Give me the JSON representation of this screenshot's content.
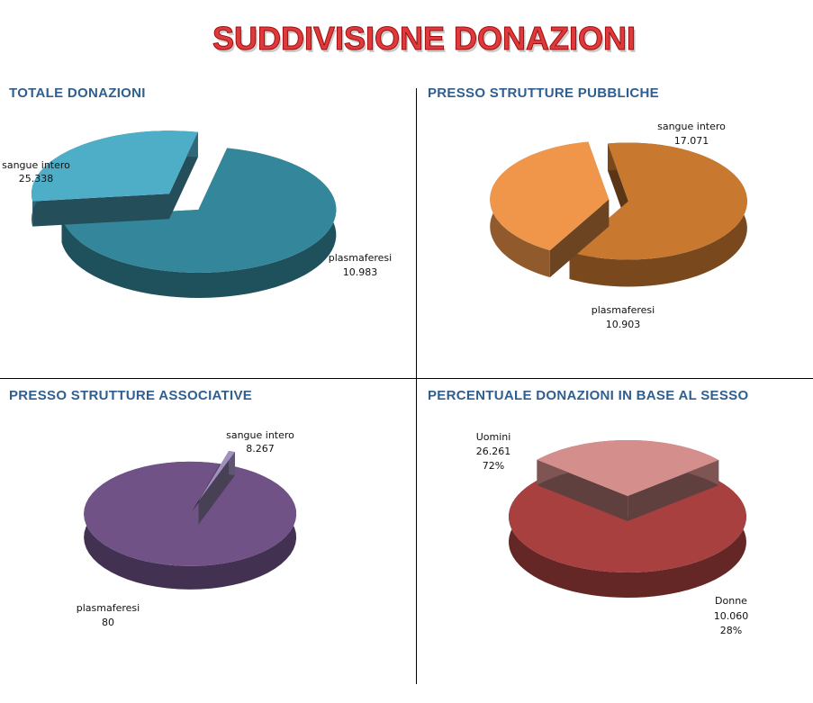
{
  "page_title": "SUDDIVISIONE DONAZIONI",
  "colors": {
    "title_fill": "#e0393b",
    "panel_title": "#2f5f8f"
  },
  "chart_data": [
    {
      "type": "pie",
      "title": "TOTALE DONAZIONI",
      "style": "3d-exploded",
      "slices": [
        {
          "label": "sangue intero",
          "value": "25.338",
          "color": "#34879b"
        },
        {
          "label": "plasmaferesi",
          "value": "10.983",
          "color": "#4eaec8"
        }
      ]
    },
    {
      "type": "pie",
      "title": "PRESSO STRUTTURE PUBBLICHE",
      "style": "3d-exploded",
      "slices": [
        {
          "label": "sangue intero",
          "value": "17.071",
          "color": "#c97830"
        },
        {
          "label": "plasmaferesi",
          "value": "10.903",
          "color": "#f0964a"
        }
      ]
    },
    {
      "type": "pie",
      "title": "PRESSO STRUTTURE ASSOCIATIVE",
      "style": "3d-exploded",
      "slices": [
        {
          "label": "sangue intero",
          "value": "8.267",
          "color": "#705287"
        },
        {
          "label": "plasmaferesi",
          "value": "80",
          "color": "#a090c0"
        }
      ]
    },
    {
      "type": "pie",
      "title": "PERCENTUALE DONAZIONI IN BASE AL SESSO",
      "style": "3d-exploded",
      "slices": [
        {
          "label": "Uomini",
          "value": "26.261",
          "percent": "72%",
          "color": "#a8403f"
        },
        {
          "label": "Donne",
          "value": "10.060",
          "percent": "28%",
          "color": "#d48e8c"
        }
      ]
    }
  ]
}
